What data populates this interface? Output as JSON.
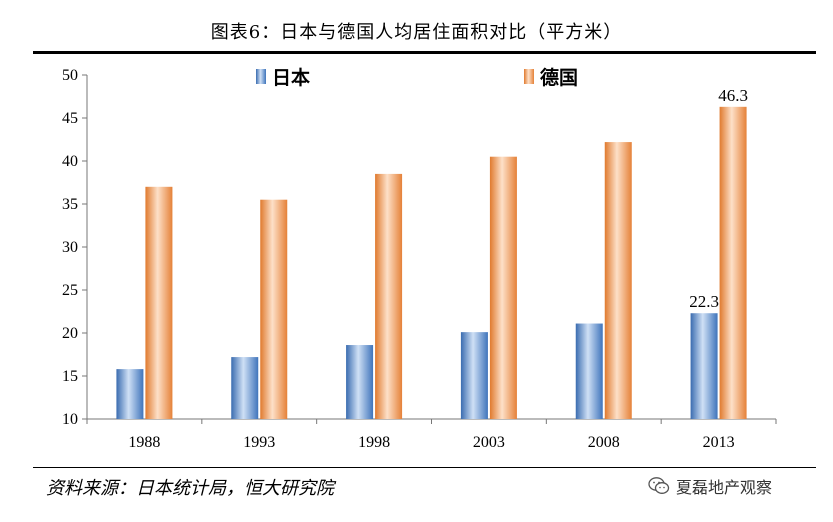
{
  "title": "图表6：日本与德国人均居住面积对比（平方米）",
  "source": "资料来源：日本统计局，恒大研究院",
  "watermark": "夏磊地产观察",
  "icon": "wechat-icon",
  "colors": {
    "japan": "#5b8fd0",
    "germany": "#f39a5a"
  },
  "chart_data": {
    "type": "bar",
    "categories": [
      "1988",
      "1993",
      "1998",
      "2003",
      "2008",
      "2013"
    ],
    "series": [
      {
        "name": "日本",
        "values": [
          15.8,
          17.2,
          18.6,
          20.1,
          21.1,
          22.3
        ]
      },
      {
        "name": "德国",
        "values": [
          37.0,
          35.5,
          38.5,
          40.5,
          42.2,
          46.3
        ]
      }
    ],
    "data_labels": [
      {
        "series": 0,
        "index": 5,
        "text": "22.3"
      },
      {
        "series": 1,
        "index": 5,
        "text": "46.3"
      }
    ],
    "ylim": [
      10,
      50
    ],
    "yticks": [
      "10",
      "15",
      "20",
      "25",
      "30",
      "35",
      "40",
      "45",
      "50"
    ],
    "grid": false,
    "legend": "top"
  }
}
